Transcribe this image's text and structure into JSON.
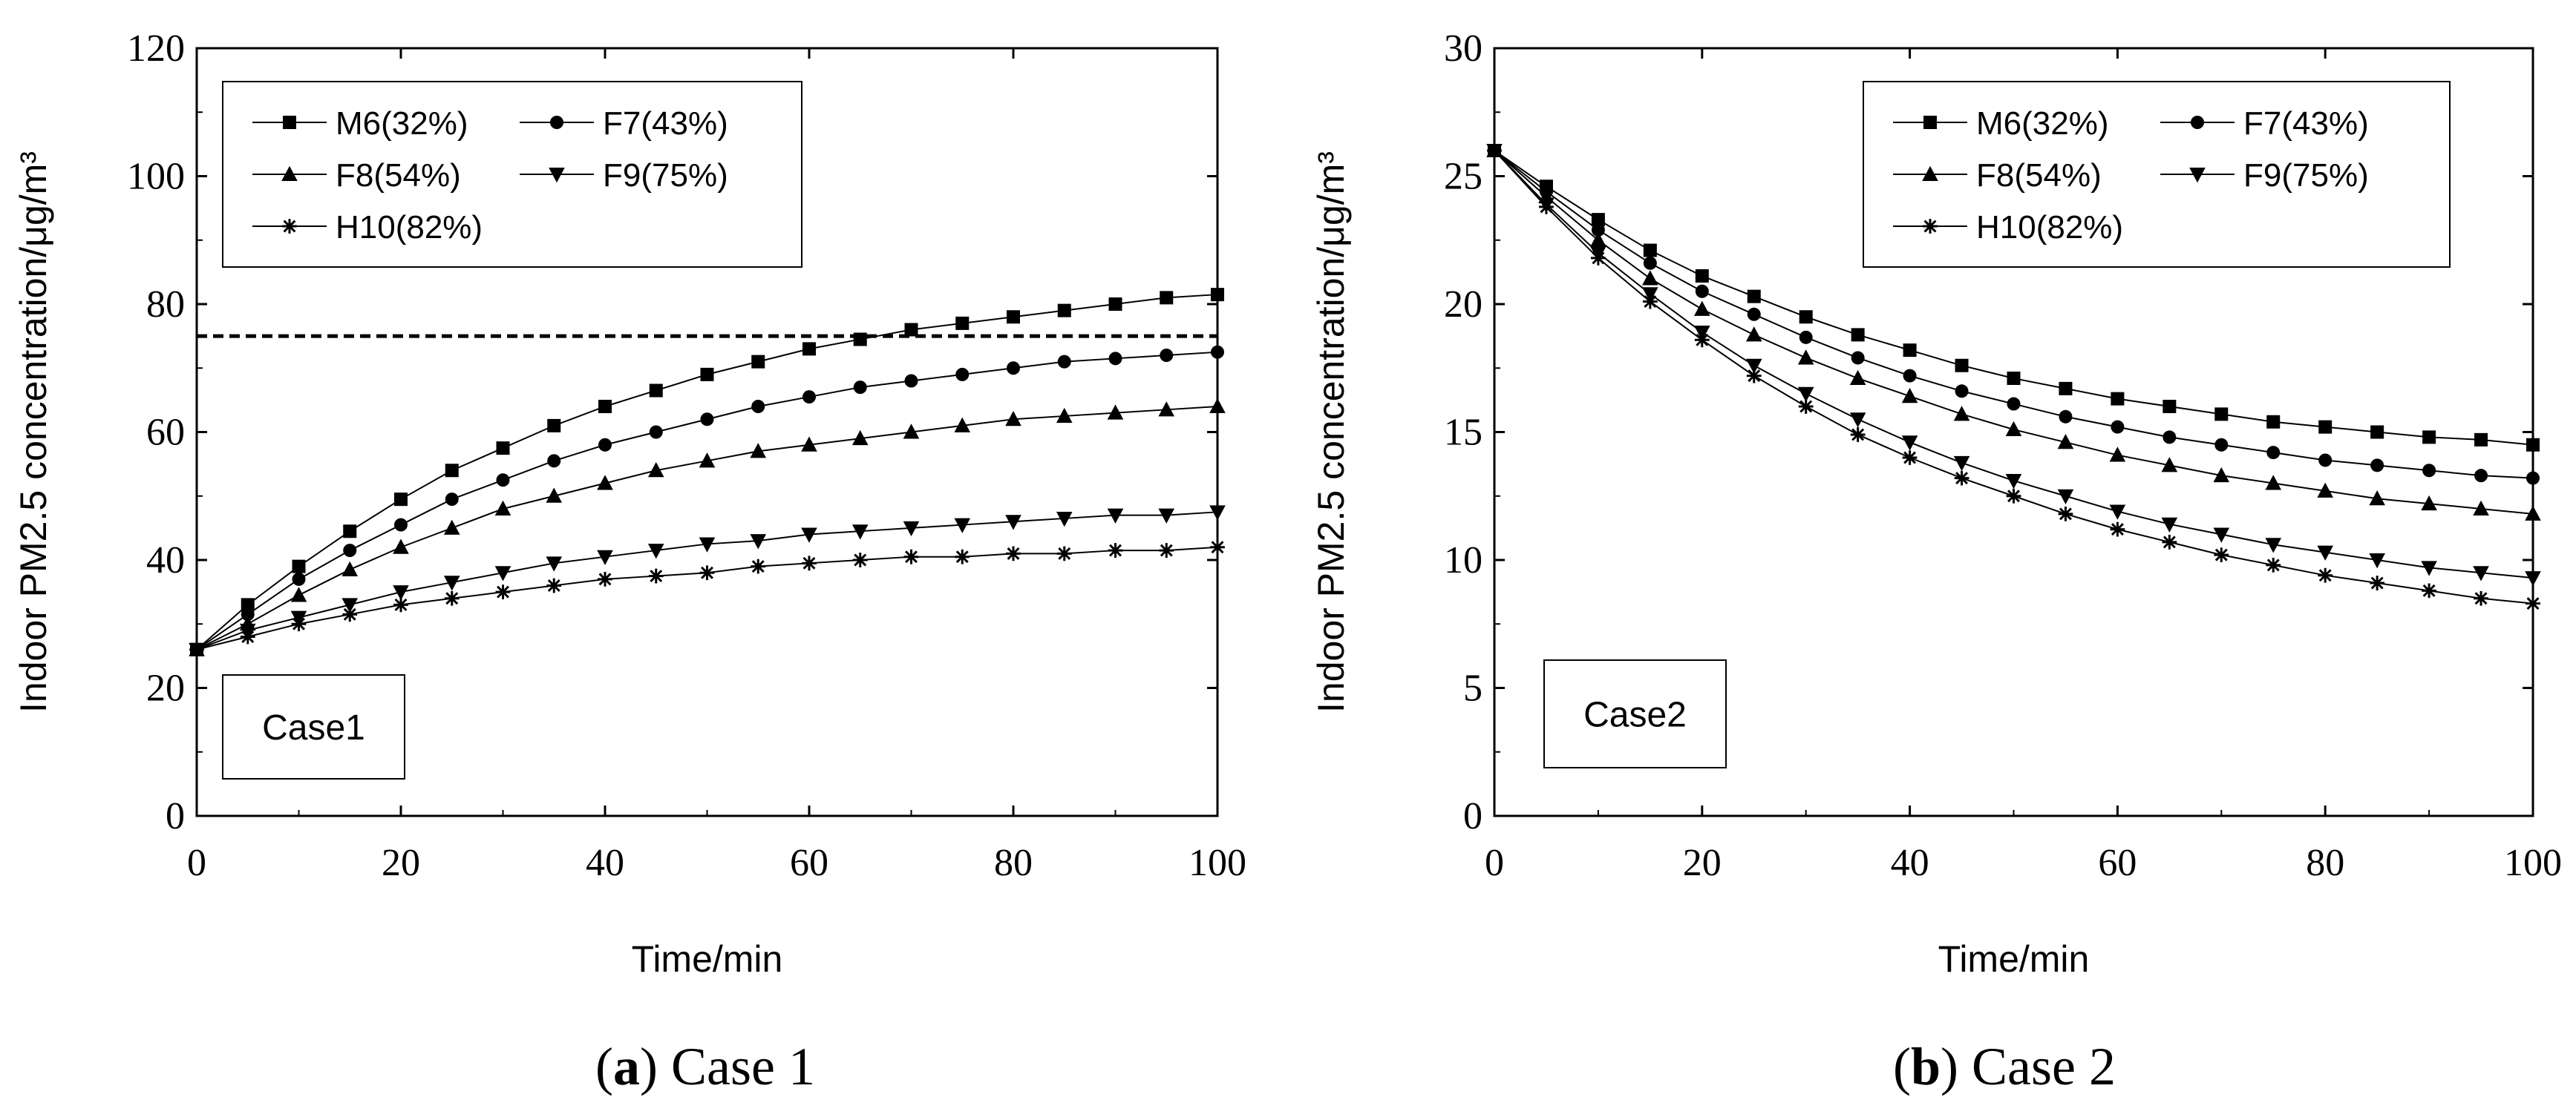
{
  "chart_data": [
    {
      "type": "line",
      "panel": "a",
      "caption_letter": "a",
      "caption_text": " Case 1",
      "case_label": "Case1",
      "xlabel": "Time/min",
      "ylabel": "Indoor PM2.5 concentration/μg/m³",
      "xlim": [
        0,
        100
      ],
      "ylim": [
        0,
        120
      ],
      "xticks": [
        0,
        20,
        40,
        60,
        80,
        100
      ],
      "yticks": [
        0,
        20,
        40,
        60,
        80,
        100,
        120
      ],
      "reference_line": {
        "y": 75,
        "style": "dashed"
      },
      "x": [
        0,
        5,
        10,
        15,
        20,
        25,
        30,
        35,
        40,
        45,
        50,
        55,
        60,
        65,
        70,
        75,
        80,
        85,
        90,
        95,
        100
      ],
      "series": [
        {
          "name": "M6(32%)",
          "marker": "square",
          "values": [
            26,
            33,
            39,
            44.5,
            49.5,
            54,
            57.5,
            61,
            64,
            66.5,
            69,
            71,
            73,
            74.5,
            76,
            77,
            78,
            79,
            80,
            81,
            81.5
          ]
        },
        {
          "name": "F7(43%)",
          "marker": "circle",
          "values": [
            26,
            31.5,
            37,
            41.5,
            45.5,
            49.5,
            52.5,
            55.5,
            58,
            60,
            62,
            64,
            65.5,
            67,
            68,
            69,
            70,
            71,
            71.5,
            72,
            72.5
          ]
        },
        {
          "name": "F8(54%)",
          "marker": "triangle-up",
          "values": [
            26,
            30,
            34.5,
            38.5,
            42,
            45,
            48,
            50,
            52,
            54,
            55.5,
            57,
            58,
            59,
            60,
            61,
            62,
            62.5,
            63,
            63.5,
            64
          ]
        },
        {
          "name": "F9(75%)",
          "marker": "triangle-down",
          "values": [
            26,
            29,
            31,
            33,
            35,
            36.5,
            38,
            39.5,
            40.5,
            41.5,
            42.5,
            43,
            44,
            44.5,
            45,
            45.5,
            46,
            46.5,
            47,
            47,
            47.5
          ]
        },
        {
          "name": "H10(82%)",
          "marker": "asterisk",
          "values": [
            26,
            28,
            30,
            31.5,
            33,
            34,
            35,
            36,
            37,
            37.5,
            38,
            39,
            39.5,
            40,
            40.5,
            40.5,
            41,
            41,
            41.5,
            41.5,
            42
          ]
        }
      ],
      "legend": {
        "position": "top-left",
        "columns": 2
      }
    },
    {
      "type": "line",
      "panel": "b",
      "caption_letter": "b",
      "caption_text": " Case 2",
      "case_label": "Case2",
      "xlabel": "Time/min",
      "ylabel": "Indoor PM2.5 concentration/μg/m³",
      "xlim": [
        0,
        100
      ],
      "ylim": [
        0,
        30
      ],
      "xticks": [
        0,
        20,
        40,
        60,
        80,
        100
      ],
      "yticks": [
        0,
        5,
        10,
        15,
        20,
        25,
        30
      ],
      "x": [
        0,
        5,
        10,
        15,
        20,
        25,
        30,
        35,
        40,
        45,
        50,
        55,
        60,
        65,
        70,
        75,
        80,
        85,
        90,
        95,
        100
      ],
      "series": [
        {
          "name": "M6(32%)",
          "marker": "square",
          "values": [
            26,
            24.6,
            23.3,
            22.1,
            21.1,
            20.3,
            19.5,
            18.8,
            18.2,
            17.6,
            17.1,
            16.7,
            16.3,
            16.0,
            15.7,
            15.4,
            15.2,
            15.0,
            14.8,
            14.7,
            14.5
          ]
        },
        {
          "name": "F7(43%)",
          "marker": "circle",
          "values": [
            26,
            24.4,
            22.9,
            21.6,
            20.5,
            19.6,
            18.7,
            17.9,
            17.2,
            16.6,
            16.1,
            15.6,
            15.2,
            14.8,
            14.5,
            14.2,
            13.9,
            13.7,
            13.5,
            13.3,
            13.2
          ]
        },
        {
          "name": "F8(54%)",
          "marker": "triangle-up",
          "values": [
            26,
            24.2,
            22.5,
            21.0,
            19.8,
            18.8,
            17.9,
            17.1,
            16.4,
            15.7,
            15.1,
            14.6,
            14.1,
            13.7,
            13.3,
            13.0,
            12.7,
            12.4,
            12.2,
            12.0,
            11.8
          ]
        },
        {
          "name": "F9(75%)",
          "marker": "triangle-down",
          "values": [
            26,
            23.9,
            22.0,
            20.4,
            18.9,
            17.6,
            16.5,
            15.5,
            14.6,
            13.8,
            13.1,
            12.5,
            11.9,
            11.4,
            11.0,
            10.6,
            10.3,
            10.0,
            9.7,
            9.5,
            9.3
          ]
        },
        {
          "name": "H10(82%)",
          "marker": "asterisk",
          "values": [
            26,
            23.8,
            21.8,
            20.1,
            18.6,
            17.2,
            16.0,
            14.9,
            14.0,
            13.2,
            12.5,
            11.8,
            11.2,
            10.7,
            10.2,
            9.8,
            9.4,
            9.1,
            8.8,
            8.5,
            8.3
          ]
        }
      ],
      "legend": {
        "position": "top-right",
        "columns": 2
      }
    }
  ]
}
